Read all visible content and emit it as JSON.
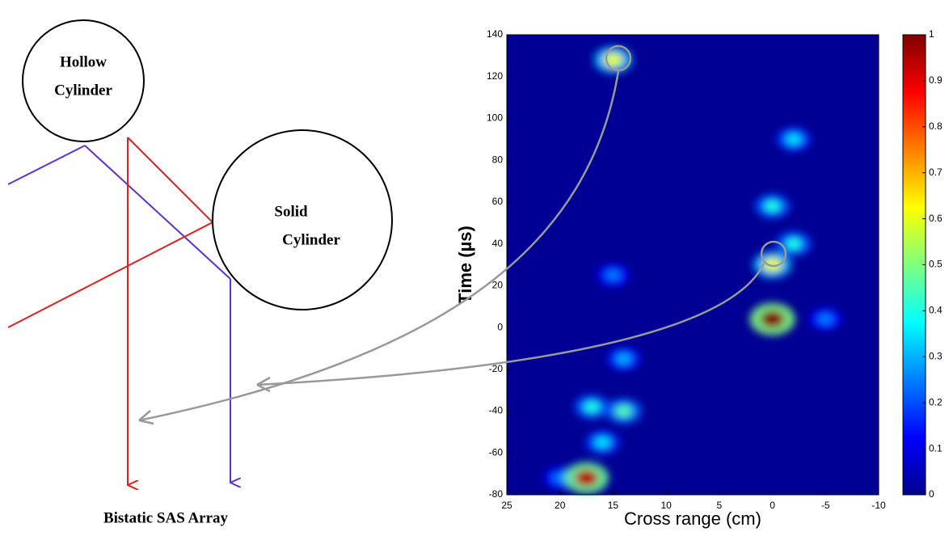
{
  "diagram": {
    "hollow": [
      "Hollow",
      "Cylinder"
    ],
    "solid": [
      "Solid",
      "Cylinder"
    ],
    "array": "Bistatic SAS Array"
  },
  "chart_data": {
    "type": "heatmap",
    "xlabel": "Cross range (cm)",
    "ylabel": "Time (µs)",
    "xlim": [
      25,
      -10
    ],
    "xticks": [
      25,
      20,
      15,
      10,
      5,
      0,
      -5,
      -10
    ],
    "ylim": [
      -80,
      140
    ],
    "yticks": [
      -80,
      -60,
      -40,
      -20,
      0,
      20,
      40,
      60,
      80,
      100,
      120,
      140
    ],
    "clim": [
      0,
      1
    ],
    "cticks": [
      0,
      0.1,
      0.2,
      0.3,
      0.4,
      0.5,
      0.6,
      0.7,
      0.8,
      0.9,
      1
    ],
    "colormap": "jet",
    "hotspots": {
      "x": [
        20,
        -5,
        15,
        14,
        16,
        17,
        14,
        -2,
        -2,
        0,
        0,
        15,
        17.5,
        0
      ],
      "y": [
        -72,
        4,
        25,
        -15,
        -55,
        -38,
        -40,
        90,
        40,
        58,
        30,
        128,
        -72,
        4
      ],
      "values": [
        0.25,
        0.25,
        0.25,
        0.3,
        0.35,
        0.4,
        0.45,
        0.35,
        0.4,
        0.4,
        0.6,
        0.6,
        0.95,
        1
      ]
    }
  }
}
